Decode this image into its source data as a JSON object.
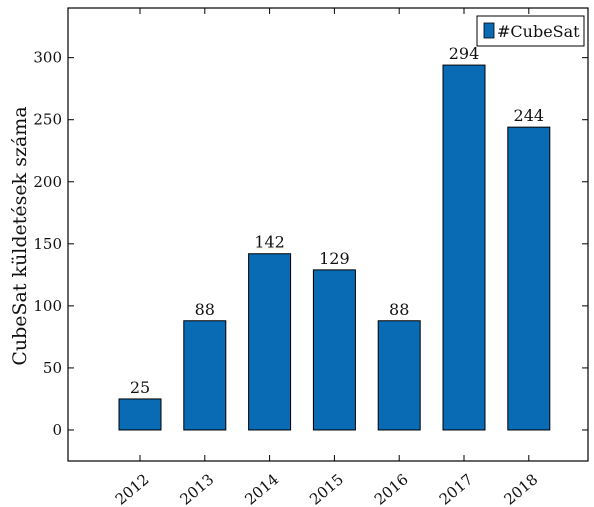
{
  "chart_data": {
    "type": "bar",
    "categories": [
      "2012",
      "2013",
      "2014",
      "2015",
      "2016",
      "2017",
      "2018"
    ],
    "series": [
      {
        "name": "#CubeSat",
        "values": [
          25,
          88,
          142,
          129,
          88,
          294,
          244
        ],
        "color": "#0a6bb5"
      }
    ],
    "title": "",
    "xlabel": "",
    "ylabel": "CubeSat küldetések száma",
    "ylim": [
      -25,
      340
    ],
    "yticks": [
      0,
      50,
      100,
      150,
      200,
      250,
      300
    ],
    "grid": false,
    "legend_position": "top-right",
    "data_labels": true
  }
}
